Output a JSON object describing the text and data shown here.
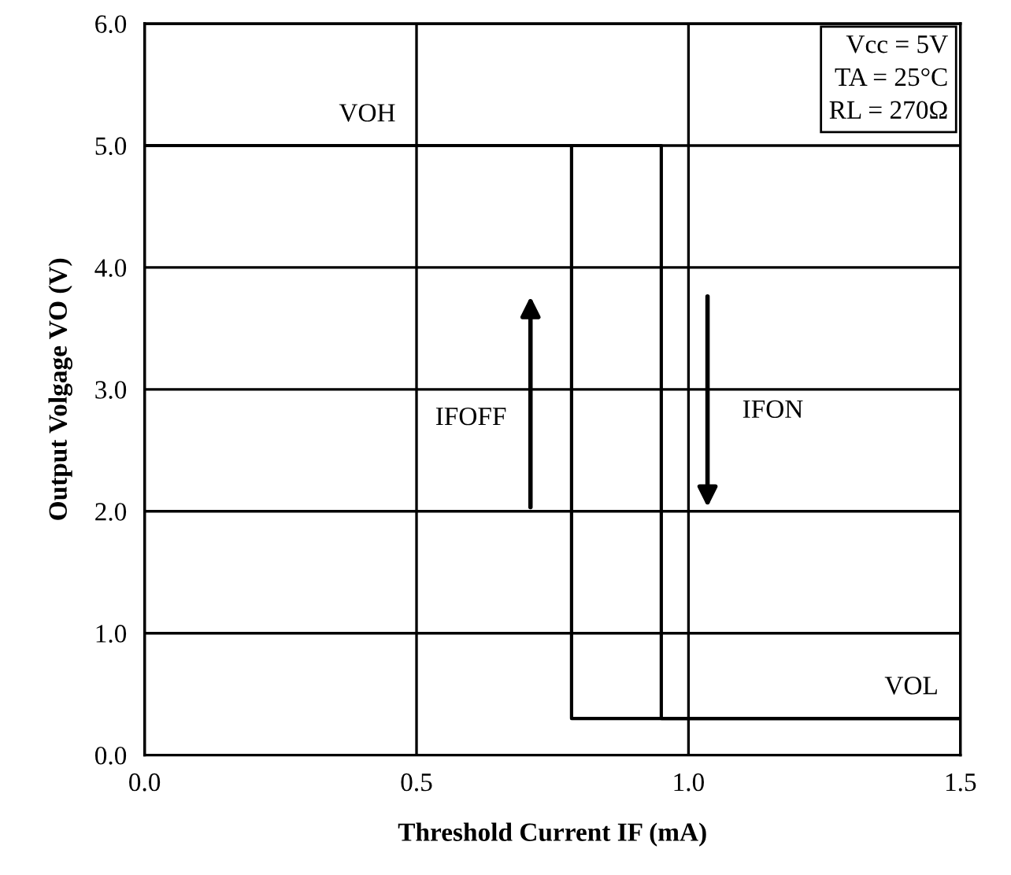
{
  "chart_data": {
    "type": "line",
    "xlabel": "Threshold Current IF (mA)",
    "ylabel": "Output Volgage VO (V)",
    "series": [
      {
        "color": "#000000",
        "x": [
          0,
          0.95,
          0.95,
          1.5
        ],
        "values": [
          5.0,
          5.0,
          0.3,
          0.3
        ]
      },
      {
        "color": "#000000",
        "x": [
          1.5,
          0.785,
          0.785,
          0
        ],
        "values": [
          0.3,
          0.3,
          5.0,
          5.0
        ]
      }
    ],
    "xlim": [
      0,
      1.5
    ],
    "ylim": [
      0,
      6
    ],
    "xticks": [
      {
        "value": 0,
        "label": "0.0"
      },
      0.5,
      {
        "value": 1,
        "label": "1.0"
      },
      1.5
    ],
    "yticks": [
      {
        "value": 0,
        "label": "0.0"
      },
      {
        "value": 1,
        "label": "1.0"
      },
      {
        "value": 2,
        "label": "2.0"
      },
      {
        "value": 3,
        "label": "3.0"
      },
      {
        "value": 4,
        "label": "4.0"
      },
      {
        "value": 5,
        "label": "5.0"
      },
      {
        "value": 6,
        "label": "6.0"
      }
    ],
    "grid": true,
    "legend": false,
    "line_style": "solid",
    "annotations": [
      "VOH",
      "IFOFF",
      "IFON",
      "VOL",
      "Vcc = 5V",
      "TA = 25°C",
      "RL = 270Ω"
    ]
  }
}
